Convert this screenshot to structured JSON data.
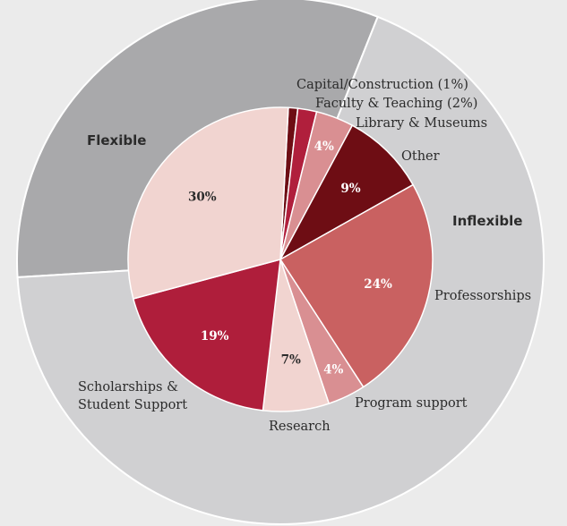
{
  "chart_data": {
    "type": "pie",
    "title": "",
    "outer_ring": {
      "categories": [
        "Flexible",
        "Inflexible"
      ],
      "values": [
        32,
        68
      ],
      "colors": [
        "#a9a9ab",
        "#d0d0d2"
      ]
    },
    "inner_pie": {
      "categories": [
        "Capital/Construction",
        "Faculty & Teaching",
        "Library & Museums",
        "Other",
        "Professorships",
        "Program support",
        "Research",
        "Scholarships & Student Support",
        ""
      ],
      "values": [
        1,
        2,
        4,
        9,
        24,
        4,
        7,
        19,
        30
      ],
      "value_labels": [
        "",
        "",
        "4%",
        "9%",
        "24%",
        "4%",
        "7%",
        "19%",
        "30%"
      ],
      "colors": [
        "#6e0d14",
        "#b01f3c",
        "#d98f92",
        "#6e0d14",
        "#c96161",
        "#d98f92",
        "#f1d4d0",
        "#af1e3b",
        "#f1d4d0"
      ],
      "label_colors": [
        "#ffffff",
        "#ffffff",
        "#ffffff",
        "#ffffff",
        "#ffffff",
        "#ffffff",
        "#2b2b2b",
        "#ffffff",
        "#2b2b2b"
      ]
    },
    "slice_labels": [
      "Capital/Construction (1%)",
      "Faculty & Teaching (2%)",
      "Library & Museums",
      "Other",
      "Professorships",
      "Program support",
      "Research",
      "Scholarships &",
      "Student Support"
    ],
    "ring_labels": [
      "Flexible",
      "Inflexible"
    ]
  }
}
